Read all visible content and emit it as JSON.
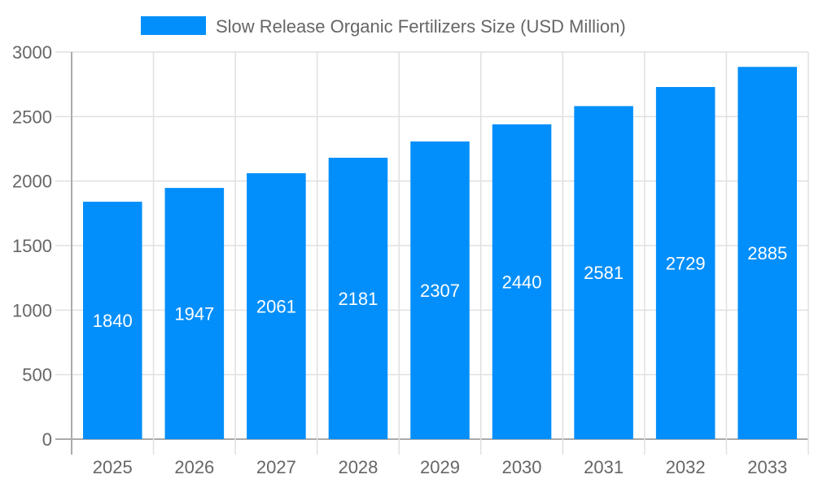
{
  "chart_data": {
    "type": "bar",
    "categories": [
      "2025",
      "2026",
      "2027",
      "2028",
      "2029",
      "2030",
      "2031",
      "2032",
      "2033"
    ],
    "series": [
      {
        "name": "Slow Release Organic Fertilizers Size (USD Million)",
        "values": [
          1840,
          1947,
          2061,
          2181,
          2307,
          2440,
          2581,
          2729,
          2885
        ],
        "color": "#038ffb"
      }
    ],
    "ylim": [
      0,
      3000
    ],
    "yticks": [
      "0",
      "500",
      "1000",
      "1500",
      "2000",
      "2500",
      "3000"
    ],
    "grid": true,
    "legend": "top",
    "data_labels": [
      "1840",
      "1947",
      "2061",
      "2181",
      "2307",
      "2440",
      "2581",
      "2729",
      "2885"
    ]
  }
}
